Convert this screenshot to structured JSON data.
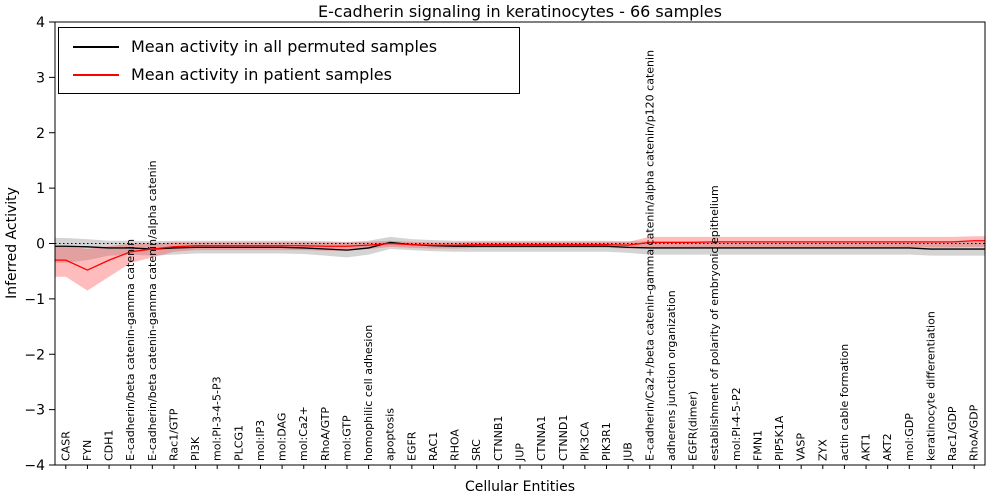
{
  "title": "E-cadherin signaling in keratinocytes - 66 samples",
  "axes": {
    "x_label": "Cellular Entities",
    "y_label": "Inferred Activity",
    "y_ticks": [
      -4,
      -3,
      -2,
      -1,
      0,
      1,
      2,
      3,
      4
    ]
  },
  "legend": {
    "items": [
      {
        "label": "Mean activity in all permuted samples",
        "color": "#000000"
      },
      {
        "label": "Mean activity in patient samples",
        "color": "#ff0000"
      }
    ]
  },
  "colors": {
    "frame": "#000000",
    "zero_line": "#000000",
    "permuted_line": "#000000",
    "patient_line": "#ff0000",
    "permuted_band": "#a0a0a0",
    "patient_band": "#ff4040"
  },
  "chart_data": {
    "type": "line",
    "title": "E-cadherin signaling in keratinocytes - 66 samples",
    "xlabel": "Cellular Entities",
    "ylabel": "Inferred Activity",
    "ylim": [
      -4,
      4
    ],
    "grid": false,
    "legend_position": "upper left",
    "zero_reference_line": 0,
    "categories": [
      "CASR",
      "FYN",
      "CDH1",
      "E-cadherin/beta catenin-gamma catenin",
      "E-cadherin/beta catenin-gamma catenin/alpha catenin",
      "Rac1/GTP",
      "PI3K",
      "mol:PI-3-4-5-P3",
      "PLCG1",
      "mol:IP3",
      "mol:DAG",
      "mol:Ca2+",
      "RhoA/GTP",
      "mol:GTP",
      "homophilic cell adhesion",
      "apoptosis",
      "EGFR",
      "RAC1",
      "RHOA",
      "SRC",
      "CTNNB1",
      "JUP",
      "CTNNA1",
      "CTNND1",
      "PIK3CA",
      "PIK3R1",
      "JUB",
      "E-cadherin/Ca2+/beta catenin-gamma catenin/alpha catenin/p120 catenin",
      "adherens junction organization",
      "EGFR(dimer)",
      "establishment of polarity of embryonic epithelium",
      "mol:PI-4-5-P2",
      "FMN1",
      "PIP5K1A",
      "VASP",
      "ZYX",
      "actin cable formation",
      "AKT1",
      "AKT2",
      "mol:GDP",
      "keratinocyte differentiation",
      "Rac1/GDP",
      "RhoA/GDP"
    ],
    "series": [
      {
        "name": "Mean activity in all permuted samples",
        "color": "#000000",
        "band_color": "#a0a0a0",
        "band_opacity": 0.45,
        "values": [
          -0.05,
          -0.06,
          -0.08,
          -0.08,
          -0.1,
          -0.08,
          -0.07,
          -0.07,
          -0.07,
          -0.07,
          -0.07,
          -0.08,
          -0.1,
          -0.12,
          -0.08,
          0.02,
          -0.02,
          -0.04,
          -0.05,
          -0.05,
          -0.05,
          -0.05,
          -0.05,
          -0.05,
          -0.05,
          -0.05,
          -0.07,
          -0.08,
          -0.08,
          -0.08,
          -0.08,
          -0.08,
          -0.08,
          -0.08,
          -0.08,
          -0.08,
          -0.08,
          -0.08,
          -0.08,
          -0.08,
          -0.1,
          -0.1,
          -0.1
        ],
        "band_upper": [
          0.1,
          0.08,
          0.05,
          0.05,
          0.04,
          0.05,
          0.05,
          0.05,
          0.05,
          0.05,
          0.05,
          0.05,
          0.04,
          0.03,
          0.05,
          0.12,
          0.08,
          0.06,
          0.05,
          0.05,
          0.05,
          0.05,
          0.05,
          0.05,
          0.05,
          0.05,
          0.04,
          0.04,
          0.04,
          0.04,
          0.04,
          0.04,
          0.04,
          0.04,
          0.04,
          0.04,
          0.04,
          0.04,
          0.04,
          0.04,
          0.03,
          0.03,
          0.03
        ],
        "band_lower": [
          -0.35,
          -0.3,
          -0.22,
          -0.2,
          -0.22,
          -0.2,
          -0.18,
          -0.18,
          -0.18,
          -0.18,
          -0.18,
          -0.19,
          -0.22,
          -0.25,
          -0.2,
          -0.1,
          -0.12,
          -0.14,
          -0.15,
          -0.15,
          -0.15,
          -0.15,
          -0.15,
          -0.15,
          -0.15,
          -0.15,
          -0.17,
          -0.2,
          -0.2,
          -0.2,
          -0.2,
          -0.2,
          -0.2,
          -0.2,
          -0.2,
          -0.2,
          -0.2,
          -0.2,
          -0.2,
          -0.2,
          -0.22,
          -0.22,
          -0.22
        ]
      },
      {
        "name": "Mean activity in patient samples",
        "color": "#ff0000",
        "band_color": "#ff4040",
        "band_opacity": 0.35,
        "values": [
          -0.3,
          -0.48,
          -0.3,
          -0.15,
          -0.1,
          -0.06,
          -0.04,
          -0.04,
          -0.04,
          -0.04,
          -0.04,
          -0.04,
          -0.05,
          -0.05,
          -0.03,
          0.0,
          -0.02,
          -0.03,
          -0.03,
          -0.02,
          -0.02,
          -0.02,
          -0.02,
          -0.02,
          -0.02,
          -0.02,
          -0.03,
          0.02,
          0.02,
          0.02,
          0.03,
          0.03,
          0.03,
          0.03,
          0.03,
          0.03,
          0.03,
          0.03,
          0.03,
          0.03,
          0.03,
          0.03,
          0.05
        ],
        "band_upper": [
          -0.05,
          -0.1,
          -0.05,
          0.0,
          0.0,
          0.02,
          0.02,
          0.02,
          0.02,
          0.02,
          0.02,
          0.02,
          0.02,
          0.02,
          0.03,
          0.05,
          0.03,
          0.02,
          0.02,
          0.03,
          0.03,
          0.03,
          0.03,
          0.03,
          0.03,
          0.03,
          0.03,
          0.12,
          0.12,
          0.12,
          0.12,
          0.12,
          0.12,
          0.12,
          0.12,
          0.12,
          0.12,
          0.12,
          0.12,
          0.12,
          0.12,
          0.12,
          0.13
        ],
        "band_lower": [
          -0.6,
          -0.85,
          -0.6,
          -0.35,
          -0.25,
          -0.15,
          -0.12,
          -0.12,
          -0.12,
          -0.12,
          -0.12,
          -0.12,
          -0.13,
          -0.13,
          -0.1,
          -0.06,
          -0.08,
          -0.09,
          -0.09,
          -0.08,
          -0.08,
          -0.08,
          -0.08,
          -0.08,
          -0.08,
          -0.08,
          -0.09,
          -0.08,
          -0.08,
          -0.08,
          -0.07,
          -0.07,
          -0.07,
          -0.07,
          -0.07,
          -0.07,
          -0.07,
          -0.07,
          -0.07,
          -0.07,
          -0.07,
          -0.07,
          -0.06
        ]
      }
    ]
  }
}
